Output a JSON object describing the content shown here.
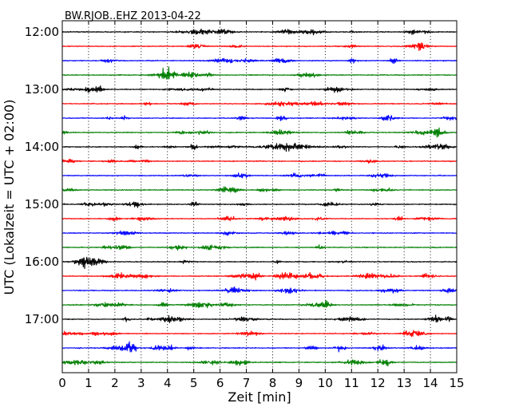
{
  "chart_data": {
    "type": "line",
    "title": "BW.RJOB..EHZ 2013-04-22",
    "xlabel": "Zeit  [min]",
    "ylabel": "UTC (Lokalzeit = UTC + 02:00)",
    "xlim": [
      0,
      15
    ],
    "x_ticks": [
      "0",
      "1",
      "2",
      "3",
      "4",
      "5",
      "6",
      "7",
      "8",
      "9",
      "10",
      "11",
      "12",
      "13",
      "14",
      "15"
    ],
    "y_ticks": [
      "12:00",
      "13:00",
      "14:00",
      "15:00",
      "16:00",
      "17:00"
    ],
    "grid": "vertical dotted lines at each minute",
    "legend": "none",
    "minutes_per_trace": 15,
    "trace_start": "12:00",
    "trace_count": 24,
    "trace_colors": [
      "#000000",
      "#ff0000",
      "#0000ff",
      "#007f00"
    ],
    "series": [
      {
        "start": "12:00"
      },
      {
        "start": "12:15"
      },
      {
        "start": "12:30"
      },
      {
        "start": "12:45"
      },
      {
        "start": "13:00"
      },
      {
        "start": "13:15"
      },
      {
        "start": "13:30"
      },
      {
        "start": "13:45"
      },
      {
        "start": "14:00"
      },
      {
        "start": "14:15"
      },
      {
        "start": "14:30"
      },
      {
        "start": "14:45"
      },
      {
        "start": "15:00"
      },
      {
        "start": "15:15"
      },
      {
        "start": "15:30"
      },
      {
        "start": "15:45"
      },
      {
        "start": "16:00"
      },
      {
        "start": "16:15"
      },
      {
        "start": "16:30"
      },
      {
        "start": "16:45"
      },
      {
        "start": "17:00"
      },
      {
        "start": "17:15"
      },
      {
        "start": "17:30"
      },
      {
        "start": "17:45"
      }
    ],
    "notable_event": {
      "start": "14:00",
      "x_range_min": [
        7.5,
        9.5
      ],
      "description": "larger-amplitude wave group"
    }
  }
}
